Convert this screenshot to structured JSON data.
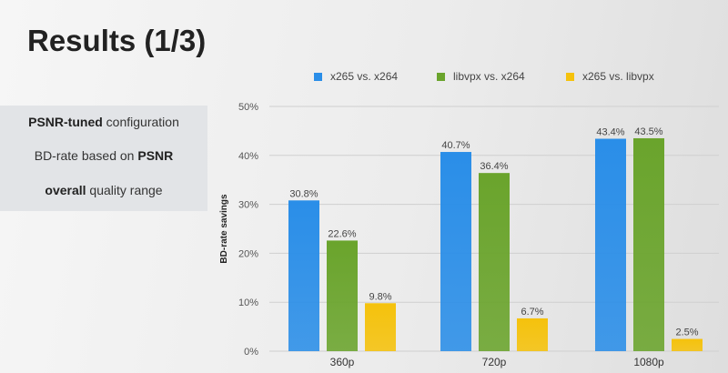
{
  "slide": {
    "title": "Results (1/3)",
    "info": [
      {
        "bold": "PSNR-tuned",
        "rest": " configuration"
      },
      {
        "pre": "BD-rate based on ",
        "bold": "PSNR"
      },
      {
        "bold": "overall",
        "rest": " quality range"
      }
    ]
  },
  "colors": {
    "x265_vs_x264": "#2a8ee8",
    "libvpx_vs_x264": "#6aa42c",
    "x265_vs_libvpx": "#f5c20c"
  },
  "chart_data": {
    "type": "bar",
    "categories": [
      "360p",
      "720p",
      "1080p"
    ],
    "series": [
      {
        "name": "x265 vs. x264",
        "values": [
          30.8,
          40.7,
          43.4
        ],
        "labels": [
          "30.8%",
          "40.7%",
          "43.4%"
        ]
      },
      {
        "name": "libvpx vs. x264",
        "values": [
          22.6,
          36.4,
          43.5
        ],
        "labels": [
          "22.6%",
          "36.4%",
          "43.5%"
        ]
      },
      {
        "name": "x265 vs. libvpx",
        "values": [
          9.8,
          6.7,
          2.5
        ],
        "labels": [
          "9.8%",
          "6.7%",
          "2.5%"
        ]
      }
    ],
    "ylabel": "BD-rate savings",
    "ylim": [
      0,
      50
    ],
    "yticks": [
      0,
      10,
      20,
      30,
      40,
      50
    ],
    "ytick_labels": [
      "0%",
      "10%",
      "20%",
      "30%",
      "40%",
      "50%"
    ],
    "legend_position": "top"
  }
}
